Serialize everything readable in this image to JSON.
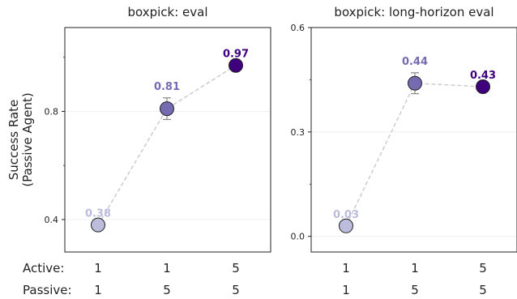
{
  "chart_data": [
    {
      "type": "scatter",
      "title": "boxpick: eval",
      "ylabel": "Success Rate\n(Passive Agent)",
      "ylim": [
        0.28,
        1.11
      ],
      "yticks": [
        0.4,
        0.8
      ],
      "ytick_labels": [
        "0.4",
        "0.8"
      ],
      "minor_yticks": [
        0.6,
        1.0
      ],
      "grid": true,
      "x": [
        0,
        1,
        2
      ],
      "values": [
        0.38,
        0.81,
        0.97
      ],
      "errors": [
        0,
        0.04,
        0
      ],
      "data_labels": [
        "0.38",
        "0.81",
        "0.97"
      ],
      "colors": [
        "#bcbddc",
        "#756bb1",
        "#3f007d"
      ]
    },
    {
      "type": "scatter",
      "title": "boxpick: long-horizon eval",
      "ylabel": "",
      "ylim": [
        -0.045,
        0.6
      ],
      "yticks": [
        0.0,
        0.3,
        0.6
      ],
      "ytick_labels": [
        "0.0",
        "0.3",
        "0.6"
      ],
      "minor_yticks": [
        0.15,
        0.45
      ],
      "grid": true,
      "x": [
        0,
        1,
        2
      ],
      "values": [
        0.03,
        0.44,
        0.43
      ],
      "errors": [
        0,
        0.03,
        0
      ],
      "data_labels": [
        "0.03",
        "0.44",
        "0.43"
      ],
      "colors": [
        "#bcbddc",
        "#756bb1",
        "#3f007d"
      ]
    }
  ],
  "conditions": {
    "active_label": "Active:",
    "passive_label": "Passive:",
    "active": [
      "1",
      "1",
      "5"
    ],
    "passive": [
      "1",
      "5",
      "5"
    ]
  }
}
